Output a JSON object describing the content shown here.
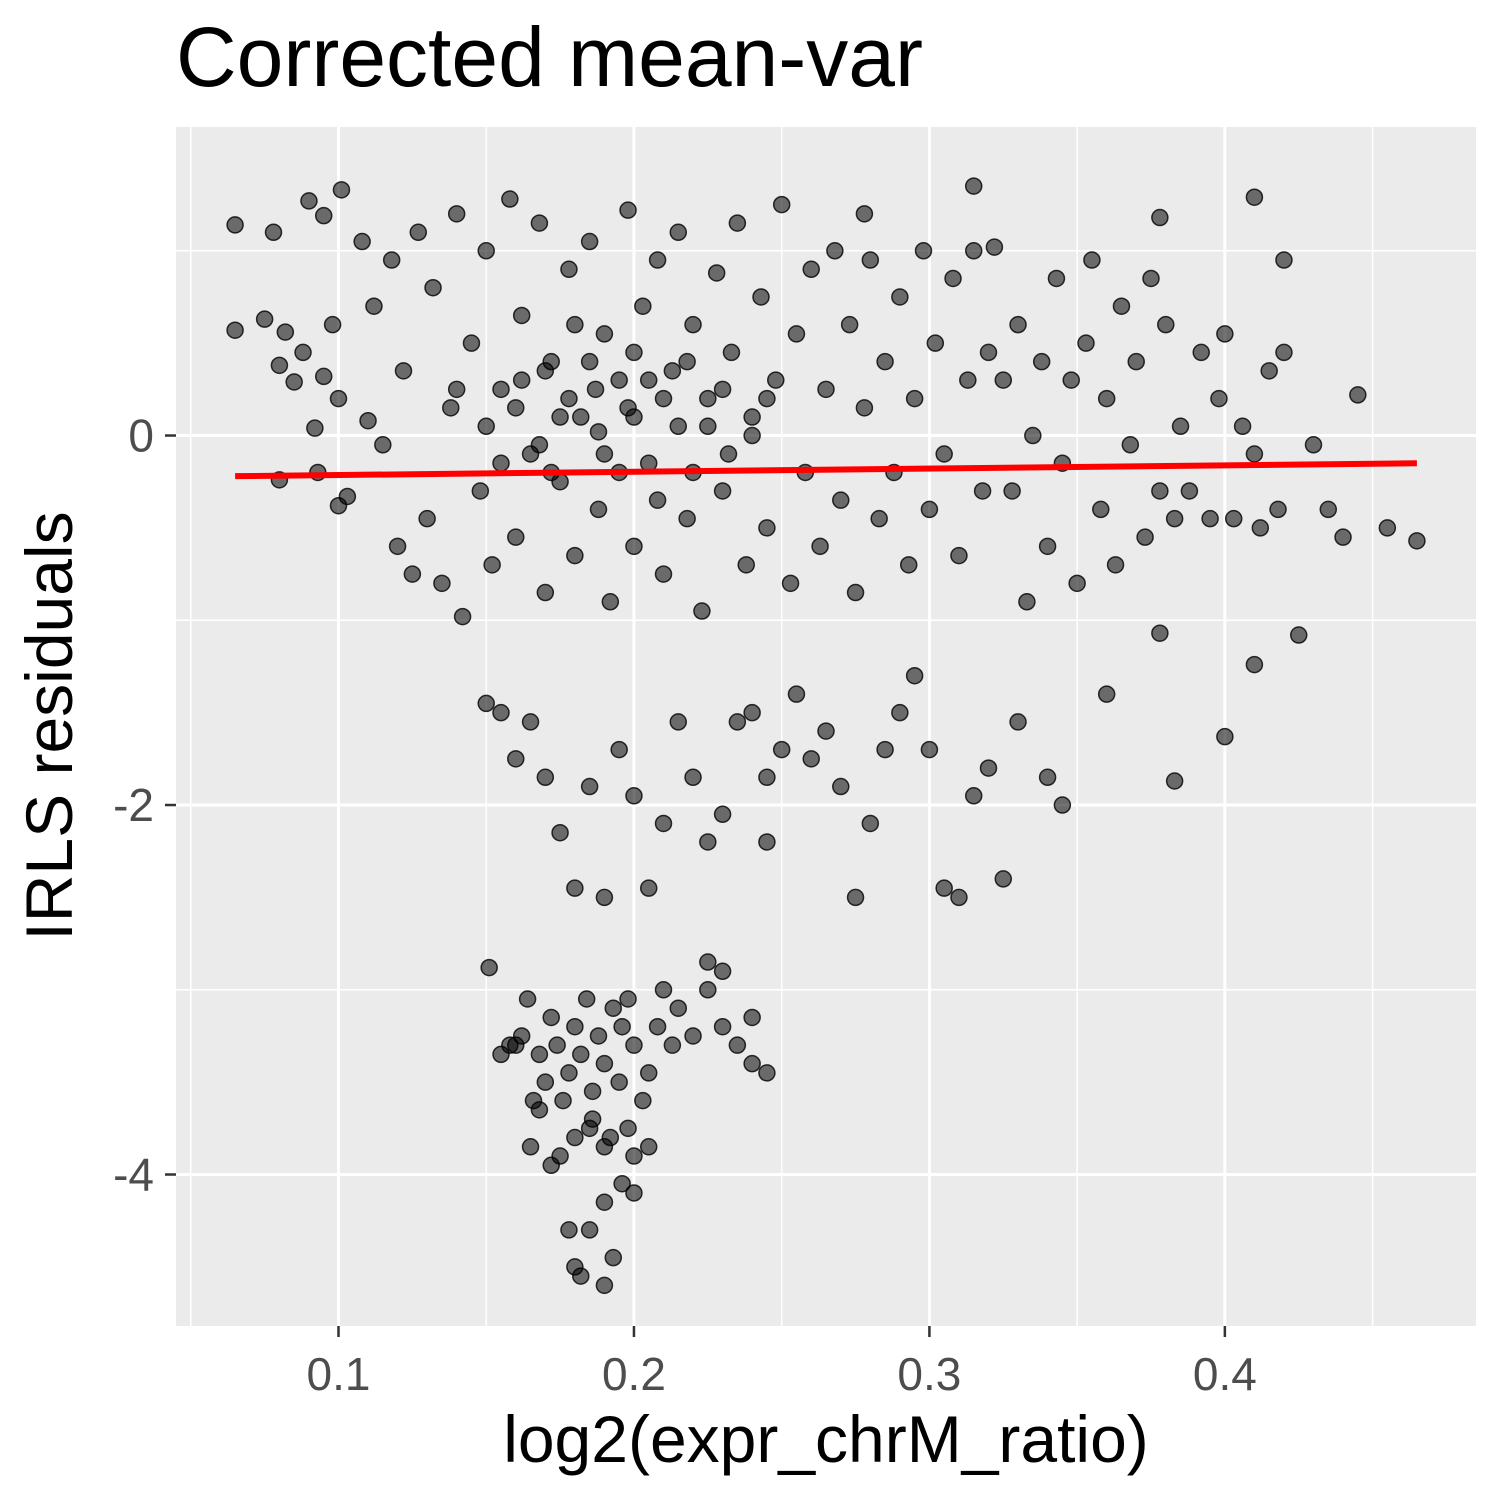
{
  "chart_data": {
    "type": "scatter",
    "title": "Corrected mean-var",
    "xlabel": "log2(expr_chrM_ratio)",
    "ylabel": "IRLS residuals",
    "xlim": [
      0.045,
      0.485
    ],
    "ylim": [
      -4.82,
      1.67
    ],
    "x_ticks": [
      0.1,
      0.2,
      0.3,
      0.4
    ],
    "x_tick_labels": [
      "0.1",
      "0.2",
      "0.3",
      "0.4"
    ],
    "x_minor_ticks": [
      0.05,
      0.15,
      0.25,
      0.35,
      0.45
    ],
    "y_ticks": [
      0,
      -2,
      -4
    ],
    "y_tick_labels": [
      "0",
      "-2",
      "-4"
    ],
    "y_minor_ticks": [
      1,
      -1,
      -3
    ],
    "grid": true,
    "point_color": "#000000",
    "point_opacity": 0.55,
    "background_color": "#EBEBEB",
    "grid_color": "#FFFFFF",
    "fit_line": {
      "color": "#FF0000",
      "x": [
        0.065,
        0.465
      ],
      "y": [
        -0.22,
        -0.15
      ]
    },
    "series": [
      {
        "values": [
          [
            0.065,
            1.14
          ],
          [
            0.078,
            1.1
          ],
          [
            0.09,
            1.27
          ],
          [
            0.101,
            1.33
          ],
          [
            0.095,
            1.19
          ],
          [
            0.065,
            0.57
          ],
          [
            0.075,
            0.63
          ],
          [
            0.08,
            0.38
          ],
          [
            0.082,
            0.56
          ],
          [
            0.085,
            0.29
          ],
          [
            0.088,
            0.45
          ],
          [
            0.092,
            0.04
          ],
          [
            0.095,
            0.32
          ],
          [
            0.098,
            0.6
          ],
          [
            0.1,
            0.2
          ],
          [
            0.08,
            -0.24
          ],
          [
            0.093,
            -0.2
          ],
          [
            0.1,
            -0.38
          ],
          [
            0.103,
            -0.33
          ],
          [
            0.108,
            1.05
          ],
          [
            0.11,
            0.08
          ],
          [
            0.112,
            0.7
          ],
          [
            0.115,
            -0.05
          ],
          [
            0.118,
            0.95
          ],
          [
            0.12,
            -0.6
          ],
          [
            0.122,
            0.35
          ],
          [
            0.125,
            -0.75
          ],
          [
            0.127,
            1.1
          ],
          [
            0.13,
            -0.45
          ],
          [
            0.132,
            0.8
          ],
          [
            0.135,
            -0.8
          ],
          [
            0.138,
            0.15
          ],
          [
            0.14,
            1.2
          ],
          [
            0.142,
            -0.98
          ],
          [
            0.145,
            0.5
          ],
          [
            0.148,
            -0.3
          ],
          [
            0.15,
            1.0
          ],
          [
            0.152,
            -0.7
          ],
          [
            0.155,
            0.25
          ],
          [
            0.158,
            1.28
          ],
          [
            0.16,
            -0.55
          ],
          [
            0.162,
            0.65
          ],
          [
            0.165,
            -0.1
          ],
          [
            0.168,
            1.15
          ],
          [
            0.17,
            -0.85
          ],
          [
            0.172,
            0.4
          ],
          [
            0.175,
            -0.25
          ],
          [
            0.178,
            0.9
          ],
          [
            0.18,
            -0.65
          ],
          [
            0.182,
            0.1
          ],
          [
            0.185,
            1.05
          ],
          [
            0.188,
            -0.4
          ],
          [
            0.19,
            0.55
          ],
          [
            0.192,
            -0.9
          ],
          [
            0.195,
            0.3
          ],
          [
            0.198,
            1.22
          ],
          [
            0.2,
            -0.6
          ],
          [
            0.203,
            0.7
          ],
          [
            0.205,
            -0.15
          ],
          [
            0.208,
            0.95
          ],
          [
            0.21,
            -0.75
          ],
          [
            0.213,
            0.35
          ],
          [
            0.215,
            1.1
          ],
          [
            0.218,
            -0.45
          ],
          [
            0.22,
            0.6
          ],
          [
            0.223,
            -0.95
          ],
          [
            0.225,
            0.2
          ],
          [
            0.228,
            0.88
          ],
          [
            0.23,
            -0.3
          ],
          [
            0.233,
            0.45
          ],
          [
            0.235,
            1.15
          ],
          [
            0.238,
            -0.7
          ],
          [
            0.24,
            0.1
          ],
          [
            0.243,
            0.75
          ],
          [
            0.245,
            -0.5
          ],
          [
            0.248,
            0.3
          ],
          [
            0.25,
            1.25
          ],
          [
            0.253,
            -0.8
          ],
          [
            0.255,
            0.55
          ],
          [
            0.258,
            -0.2
          ],
          [
            0.26,
            0.9
          ],
          [
            0.263,
            -0.6
          ],
          [
            0.265,
            0.25
          ],
          [
            0.268,
            1.0
          ],
          [
            0.27,
            -0.35
          ],
          [
            0.273,
            0.6
          ],
          [
            0.275,
            -0.85
          ],
          [
            0.278,
            0.15
          ],
          [
            0.28,
            0.95
          ],
          [
            0.283,
            -0.45
          ],
          [
            0.285,
            0.4
          ],
          [
            0.288,
            -0.2
          ],
          [
            0.29,
            0.75
          ],
          [
            0.293,
            -0.7
          ],
          [
            0.295,
            0.2
          ],
          [
            0.298,
            1.0
          ],
          [
            0.3,
            -0.4
          ],
          [
            0.302,
            0.5
          ],
          [
            0.305,
            -0.1
          ],
          [
            0.308,
            0.85
          ],
          [
            0.31,
            -0.65
          ],
          [
            0.313,
            0.3
          ],
          [
            0.315,
            1.0
          ],
          [
            0.318,
            -0.3
          ],
          [
            0.32,
            0.45
          ],
          [
            0.188,
            0.02
          ],
          [
            0.2,
            0.1
          ],
          [
            0.178,
            0.2
          ],
          [
            0.215,
            0.05
          ],
          [
            0.168,
            -0.05
          ],
          [
            0.195,
            -0.2
          ],
          [
            0.205,
            0.3
          ],
          [
            0.185,
            0.4
          ],
          [
            0.175,
            0.1
          ],
          [
            0.21,
            0.2
          ],
          [
            0.225,
            0.05
          ],
          [
            0.16,
            0.15
          ],
          [
            0.19,
            -0.1
          ],
          [
            0.2,
            0.45
          ],
          [
            0.23,
            0.25
          ],
          [
            0.17,
            0.35
          ],
          [
            0.24,
            0.0
          ],
          [
            0.155,
            -0.15
          ],
          [
            0.22,
            -0.2
          ],
          [
            0.18,
            0.6
          ],
          [
            0.208,
            -0.35
          ],
          [
            0.198,
            0.15
          ],
          [
            0.187,
            0.25
          ],
          [
            0.172,
            -0.2
          ],
          [
            0.218,
            0.4
          ],
          [
            0.232,
            -0.1
          ],
          [
            0.245,
            0.2
          ],
          [
            0.162,
            0.3
          ],
          [
            0.15,
            0.05
          ],
          [
            0.14,
            0.25
          ],
          [
            0.322,
            1.02
          ],
          [
            0.325,
            0.3
          ],
          [
            0.328,
            -0.3
          ],
          [
            0.33,
            0.6
          ],
          [
            0.333,
            -0.9
          ],
          [
            0.335,
            0.0
          ],
          [
            0.338,
            0.4
          ],
          [
            0.34,
            -0.6
          ],
          [
            0.343,
            0.85
          ],
          [
            0.345,
            -0.15
          ],
          [
            0.348,
            0.3
          ],
          [
            0.35,
            -0.8
          ],
          [
            0.353,
            0.5
          ],
          [
            0.355,
            0.95
          ],
          [
            0.358,
            -0.4
          ],
          [
            0.36,
            0.2
          ],
          [
            0.363,
            -0.7
          ],
          [
            0.365,
            0.7
          ],
          [
            0.368,
            -0.05
          ],
          [
            0.37,
            0.4
          ],
          [
            0.373,
            -0.55
          ],
          [
            0.375,
            0.85
          ],
          [
            0.378,
            -0.3
          ],
          [
            0.38,
            0.6
          ],
          [
            0.383,
            -0.45
          ],
          [
            0.385,
            0.05
          ],
          [
            0.388,
            -0.3
          ],
          [
            0.392,
            0.45
          ],
          [
            0.395,
            -0.45
          ],
          [
            0.398,
            0.2
          ],
          [
            0.4,
            0.55
          ],
          [
            0.403,
            -0.45
          ],
          [
            0.406,
            0.05
          ],
          [
            0.41,
            -0.1
          ],
          [
            0.412,
            -0.5
          ],
          [
            0.415,
            0.35
          ],
          [
            0.418,
            -0.4
          ],
          [
            0.42,
            0.95
          ],
          [
            0.42,
            0.45
          ],
          [
            0.43,
            -0.05
          ],
          [
            0.435,
            -0.4
          ],
          [
            0.445,
            0.22
          ],
          [
            0.44,
            -0.55
          ],
          [
            0.455,
            -0.5
          ],
          [
            0.465,
            -0.57
          ],
          [
            0.41,
            1.29
          ],
          [
            0.378,
            1.18
          ],
          [
            0.315,
            1.35
          ],
          [
            0.278,
            1.2
          ],
          [
            0.425,
            -1.08
          ],
          [
            0.41,
            -1.24
          ],
          [
            0.4,
            -1.63
          ],
          [
            0.383,
            -1.87
          ],
          [
            0.378,
            -1.07
          ],
          [
            0.36,
            -1.4
          ],
          [
            0.345,
            -2.0
          ],
          [
            0.34,
            -1.85
          ],
          [
            0.33,
            -1.55
          ],
          [
            0.32,
            -1.8
          ],
          [
            0.325,
            -2.4
          ],
          [
            0.315,
            -1.95
          ],
          [
            0.31,
            -2.5
          ],
          [
            0.305,
            -2.45
          ],
          [
            0.3,
            -1.7
          ],
          [
            0.295,
            -1.3
          ],
          [
            0.29,
            -1.5
          ],
          [
            0.285,
            -1.7
          ],
          [
            0.28,
            -2.1
          ],
          [
            0.275,
            -2.5
          ],
          [
            0.27,
            -1.9
          ],
          [
            0.265,
            -1.6
          ],
          [
            0.26,
            -1.75
          ],
          [
            0.255,
            -1.4
          ],
          [
            0.25,
            -1.7
          ],
          [
            0.245,
            -1.85
          ],
          [
            0.245,
            -2.2
          ],
          [
            0.24,
            -1.5
          ],
          [
            0.235,
            -1.55
          ],
          [
            0.23,
            -2.05
          ],
          [
            0.225,
            -2.2
          ],
          [
            0.22,
            -1.85
          ],
          [
            0.215,
            -1.55
          ],
          [
            0.21,
            -2.1
          ],
          [
            0.205,
            -2.45
          ],
          [
            0.2,
            -1.95
          ],
          [
            0.195,
            -1.7
          ],
          [
            0.19,
            -2.5
          ],
          [
            0.185,
            -1.9
          ],
          [
            0.18,
            -2.45
          ],
          [
            0.175,
            -2.15
          ],
          [
            0.17,
            -1.85
          ],
          [
            0.165,
            -1.55
          ],
          [
            0.16,
            -1.75
          ],
          [
            0.155,
            -1.5
          ],
          [
            0.15,
            -1.45
          ],
          [
            0.245,
            -3.45
          ],
          [
            0.24,
            -3.15
          ],
          [
            0.24,
            -3.4
          ],
          [
            0.235,
            -3.3
          ],
          [
            0.23,
            -3.2
          ],
          [
            0.23,
            -2.9
          ],
          [
            0.225,
            -2.85
          ],
          [
            0.225,
            -3.0
          ],
          [
            0.22,
            -3.25
          ],
          [
            0.215,
            -3.1
          ],
          [
            0.213,
            -3.3
          ],
          [
            0.21,
            -3.0
          ],
          [
            0.208,
            -3.2
          ],
          [
            0.205,
            -3.45
          ],
          [
            0.203,
            -3.6
          ],
          [
            0.2,
            -3.3
          ],
          [
            0.198,
            -3.05
          ],
          [
            0.196,
            -3.2
          ],
          [
            0.195,
            -3.5
          ],
          [
            0.193,
            -3.1
          ],
          [
            0.19,
            -3.4
          ],
          [
            0.188,
            -3.25
          ],
          [
            0.186,
            -3.55
          ],
          [
            0.184,
            -3.05
          ],
          [
            0.182,
            -3.35
          ],
          [
            0.18,
            -3.2
          ],
          [
            0.178,
            -3.45
          ],
          [
            0.176,
            -3.6
          ],
          [
            0.174,
            -3.3
          ],
          [
            0.172,
            -3.15
          ],
          [
            0.17,
            -3.5
          ],
          [
            0.168,
            -3.35
          ],
          [
            0.166,
            -3.6
          ],
          [
            0.164,
            -3.05
          ],
          [
            0.162,
            -3.25
          ],
          [
            0.16,
            -3.3
          ],
          [
            0.158,
            -3.3
          ],
          [
            0.155,
            -3.35
          ],
          [
            0.151,
            -2.88
          ],
          [
            0.168,
            -3.65
          ],
          [
            0.185,
            -3.75
          ],
          [
            0.19,
            -3.85
          ],
          [
            0.18,
            -3.8
          ],
          [
            0.175,
            -3.9
          ],
          [
            0.186,
            -3.7
          ],
          [
            0.192,
            -3.8
          ],
          [
            0.2,
            -4.1
          ],
          [
            0.196,
            -4.05
          ],
          [
            0.19,
            -4.15
          ],
          [
            0.185,
            -4.3
          ],
          [
            0.178,
            -4.3
          ],
          [
            0.193,
            -4.45
          ],
          [
            0.18,
            -4.5
          ],
          [
            0.182,
            -4.55
          ],
          [
            0.19,
            -4.6
          ],
          [
            0.205,
            -3.85
          ],
          [
            0.198,
            -3.75
          ],
          [
            0.172,
            -3.95
          ],
          [
            0.165,
            -3.85
          ],
          [
            0.2,
            -3.9
          ]
        ]
      }
    ]
  }
}
